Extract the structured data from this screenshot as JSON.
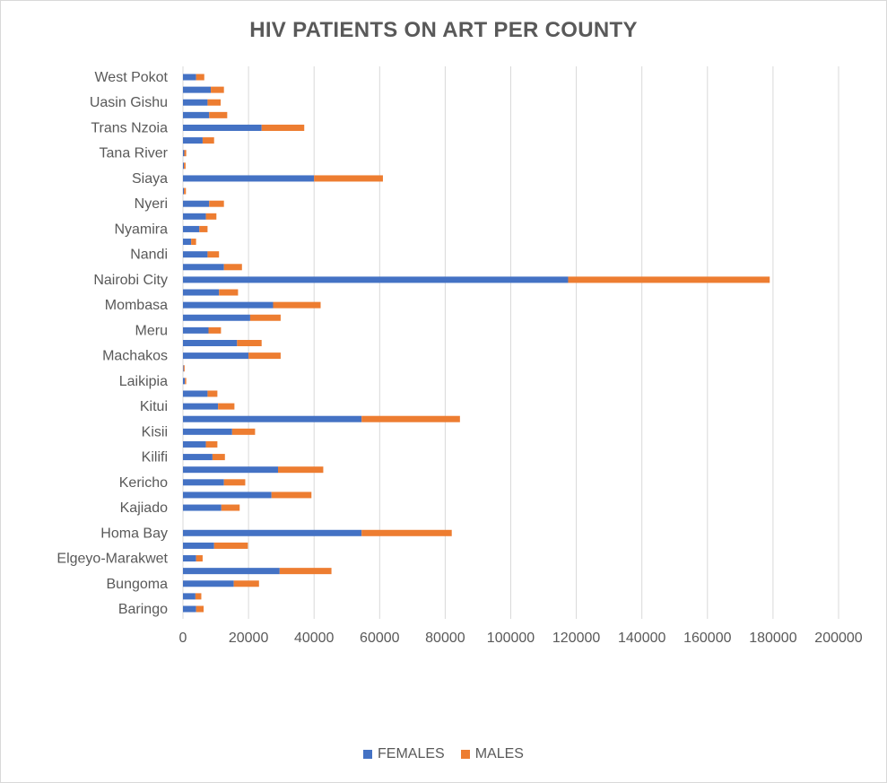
{
  "chart_data": {
    "type": "bar",
    "orientation": "horizontal",
    "stacked": true,
    "title": "HIV PATIENTS ON ART PER COUNTY",
    "xlabel": "",
    "ylabel": "",
    "xlim": [
      0,
      200000
    ],
    "x_ticks": [
      "0",
      "20000",
      "40000",
      "60000",
      "80000",
      "100000",
      "120000",
      "140000",
      "160000",
      "180000",
      "200000"
    ],
    "grid": "vertical",
    "legend_position": "bottom",
    "categories": [
      "West Pokot",
      "",
      "Uasin Gishu",
      "",
      "Trans Nzoia",
      "",
      "Tana River",
      "",
      "Siaya",
      "",
      "Nyeri",
      "",
      "Nyamira",
      "",
      "Nandi",
      "",
      "Nairobi City",
      "",
      "Mombasa",
      "",
      "Meru",
      "",
      "Machakos",
      "",
      "Laikipia",
      "",
      "Kitui",
      "",
      "Kisii",
      "",
      "Kilifi",
      "",
      "Kericho",
      "",
      "Kajiado",
      "",
      "Homa Bay",
      "",
      "Elgeyo-Marakwet",
      "",
      "Bungoma",
      "",
      "Baringo"
    ],
    "series": [
      {
        "name": "FEMALES",
        "color": "#4472C4",
        "values": [
          4000,
          8500,
          7500,
          8000,
          24000,
          6000,
          400,
          300,
          40000,
          300,
          8000,
          7000,
          5000,
          2500,
          7500,
          12500,
          117500,
          11000,
          27500,
          20500,
          7800,
          16500,
          20000,
          200,
          600,
          7500,
          10700,
          54500,
          15000,
          7000,
          9000,
          29000,
          12500,
          27000,
          11700,
          0,
          54500,
          9500,
          4000,
          29500,
          15500,
          3800,
          4000
        ]
      },
      {
        "name": "MALES",
        "color": "#ED7D31",
        "values": [
          2500,
          4000,
          4000,
          5500,
          13000,
          3500,
          600,
          500,
          21000,
          600,
          4500,
          3200,
          2500,
          1500,
          3500,
          5500,
          61500,
          5800,
          14500,
          9300,
          3800,
          7500,
          9800,
          300,
          400,
          3000,
          5000,
          30000,
          7000,
          3500,
          3800,
          13800,
          6500,
          12200,
          5600,
          0,
          27500,
          10300,
          2000,
          15800,
          7700,
          1800,
          2300
        ]
      }
    ]
  }
}
